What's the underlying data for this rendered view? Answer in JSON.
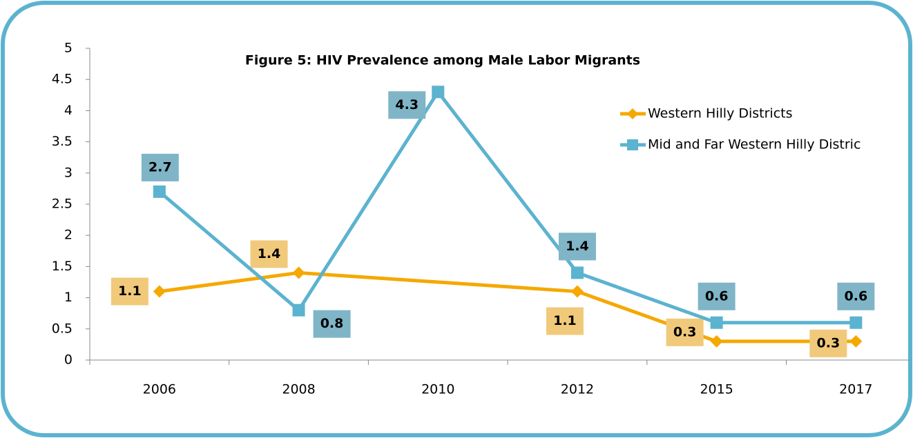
{
  "chart_data": {
    "type": "line",
    "title": "Figure 5: HIV Prevalence among Male Labor Migrants",
    "categories": [
      "2006",
      "2008",
      "2010",
      "2012",
      "2015",
      "2017"
    ],
    "series": [
      {
        "name": "Western Hilly Districts",
        "color": "#f5a800",
        "values": [
          1.1,
          1.4,
          null,
          1.1,
          0.3,
          0.3
        ]
      },
      {
        "name": "Mid and Far Western Hilly Distric",
        "color": "#5bb3cf",
        "values": [
          2.7,
          0.8,
          4.3,
          1.4,
          0.6,
          0.6
        ]
      }
    ],
    "ylim": [
      0,
      5
    ],
    "yticks": [
      0,
      0.5,
      1,
      1.5,
      2,
      2.5,
      3,
      3.5,
      4,
      4.5,
      5
    ],
    "legend": "right"
  }
}
